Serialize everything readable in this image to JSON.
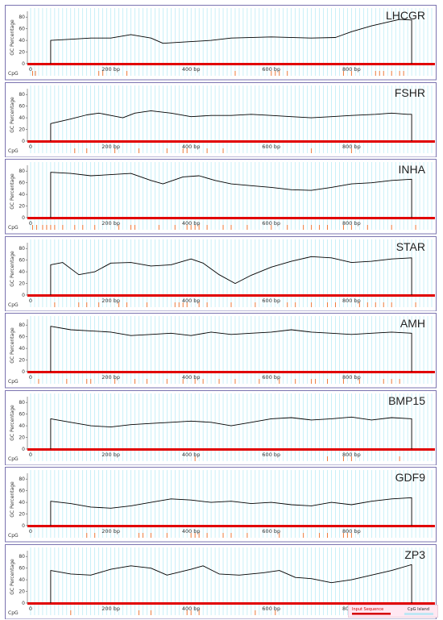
{
  "chart_data": [
    {
      "type": "line",
      "gene": "LHCGR",
      "ylabel": "GC Percentage",
      "track_label": "CpG",
      "yticks": [
        0,
        20,
        40,
        60,
        80
      ],
      "xticks": [
        {
          "pos": 0,
          "label": "0"
        },
        {
          "pos": 200,
          "label": "200  bp"
        },
        {
          "pos": 400,
          "label": "400  bp"
        },
        {
          "pos": 600,
          "label": "600  bp"
        },
        {
          "pos": 800,
          "label": "800  bp"
        }
      ],
      "ylim": [
        0,
        90
      ],
      "xlim": [
        0,
        1000
      ],
      "line_start": 50,
      "line_end": 950,
      "profile": [
        [
          50,
          40
        ],
        [
          100,
          42
        ],
        [
          150,
          44
        ],
        [
          200,
          44
        ],
        [
          250,
          50
        ],
        [
          300,
          44
        ],
        [
          330,
          35
        ],
        [
          400,
          38
        ],
        [
          450,
          40
        ],
        [
          500,
          44
        ],
        [
          600,
          46
        ],
        [
          700,
          44
        ],
        [
          760,
          45
        ],
        [
          800,
          55
        ],
        [
          850,
          65
        ],
        [
          900,
          73
        ],
        [
          920,
          76
        ],
        [
          950,
          75
        ]
      ],
      "cpg_sites": [
        5,
        12,
        170,
        180,
        240,
        510,
        600,
        610,
        620,
        640,
        780,
        800,
        860,
        870,
        880,
        900,
        920,
        930
      ]
    },
    {
      "type": "line",
      "gene": "FSHR",
      "ylabel": "GC Percentage",
      "track_label": "CpG",
      "yticks": [
        0,
        20,
        40,
        60,
        80
      ],
      "xticks": [
        {
          "pos": 0,
          "label": "0"
        },
        {
          "pos": 200,
          "label": "200  bp"
        },
        {
          "pos": 400,
          "label": "400  bp"
        },
        {
          "pos": 600,
          "label": "600  bp"
        },
        {
          "pos": 800,
          "label": "800  bp"
        }
      ],
      "ylim": [
        0,
        90
      ],
      "xlim": [
        0,
        1000
      ],
      "line_start": 50,
      "line_end": 950,
      "profile": [
        [
          50,
          30
        ],
        [
          100,
          38
        ],
        [
          140,
          45
        ],
        [
          170,
          48
        ],
        [
          200,
          44
        ],
        [
          230,
          40
        ],
        [
          260,
          48
        ],
        [
          300,
          52
        ],
        [
          350,
          48
        ],
        [
          400,
          42
        ],
        [
          450,
          44
        ],
        [
          500,
          44
        ],
        [
          550,
          46
        ],
        [
          600,
          44
        ],
        [
          650,
          42
        ],
        [
          700,
          40
        ],
        [
          750,
          42
        ],
        [
          800,
          44
        ],
        [
          860,
          46
        ],
        [
          900,
          48
        ],
        [
          940,
          46
        ],
        [
          950,
          46
        ]
      ],
      "cpg_sites": [
        110,
        140,
        210,
        270,
        340,
        380,
        390,
        440,
        480,
        700,
        800
      ]
    },
    {
      "type": "line",
      "gene": "INHA",
      "ylabel": "GC Percentage",
      "track_label": "CpG",
      "yticks": [
        0,
        20,
        40,
        60,
        80
      ],
      "xticks": [
        {
          "pos": 0,
          "label": "0"
        },
        {
          "pos": 200,
          "label": "200  bp"
        },
        {
          "pos": 400,
          "label": "400  bp"
        },
        {
          "pos": 600,
          "label": "600  bp"
        },
        {
          "pos": 800,
          "label": "800  bp"
        }
      ],
      "ylim": [
        0,
        90
      ],
      "xlim": [
        0,
        1000
      ],
      "line_start": 50,
      "line_end": 950,
      "profile": [
        [
          50,
          78
        ],
        [
          100,
          76
        ],
        [
          150,
          72
        ],
        [
          200,
          74
        ],
        [
          250,
          76
        ],
        [
          300,
          64
        ],
        [
          330,
          58
        ],
        [
          380,
          70
        ],
        [
          420,
          72
        ],
        [
          460,
          64
        ],
        [
          500,
          58
        ],
        [
          550,
          55
        ],
        [
          600,
          52
        ],
        [
          650,
          48
        ],
        [
          700,
          47
        ],
        [
          750,
          52
        ],
        [
          800,
          58
        ],
        [
          850,
          60
        ],
        [
          900,
          64
        ],
        [
          950,
          66
        ]
      ],
      "cpg_sites": [
        5,
        15,
        30,
        40,
        50,
        60,
        80,
        110,
        130,
        160,
        220,
        250,
        260,
        320,
        360,
        390,
        400,
        410,
        420,
        440,
        480,
        500,
        540,
        600,
        640,
        680,
        700,
        720,
        740,
        780,
        800,
        840,
        900,
        960
      ]
    },
    {
      "type": "line",
      "gene": "STAR",
      "ylabel": "GC Percentage",
      "track_label": "CpG",
      "yticks": [
        0,
        20,
        40,
        60,
        80
      ],
      "xticks": [
        {
          "pos": 0,
          "label": "0"
        },
        {
          "pos": 200,
          "label": "200  bp"
        },
        {
          "pos": 400,
          "label": "400  bp"
        },
        {
          "pos": 600,
          "label": "600  bp"
        },
        {
          "pos": 800,
          "label": "800  bp"
        }
      ],
      "ylim": [
        0,
        90
      ],
      "xlim": [
        0,
        1000
      ],
      "line_start": 50,
      "line_end": 950,
      "profile": [
        [
          50,
          52
        ],
        [
          80,
          56
        ],
        [
          120,
          35
        ],
        [
          160,
          40
        ],
        [
          200,
          55
        ],
        [
          250,
          56
        ],
        [
          300,
          50
        ],
        [
          350,
          52
        ],
        [
          400,
          62
        ],
        [
          430,
          55
        ],
        [
          470,
          35
        ],
        [
          510,
          20
        ],
        [
          550,
          34
        ],
        [
          600,
          48
        ],
        [
          650,
          58
        ],
        [
          700,
          66
        ],
        [
          750,
          64
        ],
        [
          800,
          56
        ],
        [
          850,
          58
        ],
        [
          900,
          62
        ],
        [
          950,
          64
        ]
      ],
      "cpg_sites": [
        60,
        120,
        140,
        170,
        220,
        240,
        290,
        360,
        370,
        380,
        390,
        420,
        440,
        500,
        560,
        640,
        660,
        700,
        740,
        760,
        820,
        840,
        860,
        880,
        900,
        960
      ]
    },
    {
      "type": "line",
      "gene": "AMH",
      "ylabel": "GC Percentage",
      "track_label": "CpG",
      "yticks": [
        0,
        20,
        40,
        60,
        80
      ],
      "xticks": [
        {
          "pos": 0,
          "label": "0"
        },
        {
          "pos": 200,
          "label": "200  bp"
        },
        {
          "pos": 400,
          "label": "400  bp"
        },
        {
          "pos": 600,
          "label": "600  bp"
        },
        {
          "pos": 800,
          "label": "800  bp"
        }
      ],
      "ylim": [
        0,
        90
      ],
      "xlim": [
        0,
        1000
      ],
      "line_start": 50,
      "line_end": 950,
      "profile": [
        [
          50,
          78
        ],
        [
          100,
          72
        ],
        [
          150,
          70
        ],
        [
          200,
          68
        ],
        [
          250,
          62
        ],
        [
          300,
          64
        ],
        [
          350,
          66
        ],
        [
          400,
          62
        ],
        [
          450,
          68
        ],
        [
          500,
          64
        ],
        [
          550,
          66
        ],
        [
          600,
          68
        ],
        [
          650,
          72
        ],
        [
          700,
          68
        ],
        [
          750,
          66
        ],
        [
          800,
          64
        ],
        [
          850,
          66
        ],
        [
          900,
          68
        ],
        [
          950,
          66
        ]
      ],
      "cpg_sites": [
        20,
        90,
        140,
        150,
        210,
        260,
        290,
        340,
        380,
        410,
        430,
        470,
        510,
        570,
        620,
        660,
        700,
        710,
        740,
        780,
        820,
        880,
        900,
        920
      ]
    },
    {
      "type": "line",
      "gene": "BMP15",
      "ylabel": "GC Percentage",
      "track_label": "CpG",
      "yticks": [
        0,
        20,
        40,
        60,
        80
      ],
      "xticks": [
        {
          "pos": 0,
          "label": "0"
        },
        {
          "pos": 200,
          "label": "200  bp"
        },
        {
          "pos": 400,
          "label": "400  bp"
        },
        {
          "pos": 600,
          "label": "600  bp"
        },
        {
          "pos": 800,
          "label": "800  bp"
        }
      ],
      "ylim": [
        0,
        90
      ],
      "xlim": [
        0,
        1000
      ],
      "line_start": 50,
      "line_end": 950,
      "profile": [
        [
          50,
          52
        ],
        [
          100,
          46
        ],
        [
          150,
          40
        ],
        [
          200,
          38
        ],
        [
          250,
          42
        ],
        [
          300,
          44
        ],
        [
          350,
          46
        ],
        [
          400,
          48
        ],
        [
          450,
          46
        ],
        [
          500,
          40
        ],
        [
          550,
          46
        ],
        [
          600,
          52
        ],
        [
          650,
          54
        ],
        [
          700,
          50
        ],
        [
          750,
          52
        ],
        [
          800,
          55
        ],
        [
          850,
          50
        ],
        [
          900,
          54
        ],
        [
          950,
          52
        ]
      ],
      "cpg_sites": [
        410,
        740,
        780,
        800,
        920
      ]
    },
    {
      "type": "line",
      "gene": "GDF9",
      "ylabel": "GC Percentage",
      "track_label": "CpG",
      "yticks": [
        0,
        20,
        40,
        60,
        80
      ],
      "xticks": [
        {
          "pos": 0,
          "label": "0"
        },
        {
          "pos": 200,
          "label": "200  bp"
        },
        {
          "pos": 400,
          "label": "400  bp"
        },
        {
          "pos": 600,
          "label": "600  bp"
        },
        {
          "pos": 800,
          "label": "800  bp"
        }
      ],
      "ylim": [
        0,
        90
      ],
      "xlim": [
        0,
        1000
      ],
      "line_start": 50,
      "line_end": 950,
      "profile": [
        [
          50,
          42
        ],
        [
          100,
          38
        ],
        [
          150,
          32
        ],
        [
          200,
          30
        ],
        [
          250,
          34
        ],
        [
          300,
          40
        ],
        [
          350,
          46
        ],
        [
          400,
          44
        ],
        [
          450,
          40
        ],
        [
          500,
          42
        ],
        [
          550,
          38
        ],
        [
          600,
          40
        ],
        [
          650,
          36
        ],
        [
          700,
          34
        ],
        [
          750,
          40
        ],
        [
          800,
          36
        ],
        [
          850,
          42
        ],
        [
          900,
          46
        ],
        [
          950,
          48
        ]
      ],
      "cpg_sites": [
        140,
        160,
        270,
        280,
        300,
        340,
        400,
        410,
        420,
        440,
        480,
        500,
        540,
        620,
        680,
        720,
        740,
        780,
        790,
        800
      ]
    },
    {
      "type": "line",
      "gene": "ZP3",
      "ylabel": "GC Percentage",
      "track_label": "CpG",
      "yticks": [
        0,
        20,
        40,
        60,
        80
      ],
      "xticks": [
        {
          "pos": 0,
          "label": "0"
        },
        {
          "pos": 200,
          "label": "200  bp"
        },
        {
          "pos": 400,
          "label": "400  bp"
        },
        {
          "pos": 600,
          "label": "600  bp"
        },
        {
          "pos": 800,
          "label": "800  bp"
        }
      ],
      "ylim": [
        0,
        90
      ],
      "xlim": [
        0,
        1000
      ],
      "line_start": 50,
      "line_end": 950,
      "profile": [
        [
          50,
          56
        ],
        [
          100,
          50
        ],
        [
          150,
          48
        ],
        [
          200,
          58
        ],
        [
          250,
          64
        ],
        [
          300,
          60
        ],
        [
          340,
          48
        ],
        [
          400,
          58
        ],
        [
          430,
          64
        ],
        [
          470,
          50
        ],
        [
          520,
          48
        ],
        [
          580,
          52
        ],
        [
          620,
          56
        ],
        [
          660,
          44
        ],
        [
          700,
          42
        ],
        [
          750,
          35
        ],
        [
          800,
          40
        ],
        [
          850,
          48
        ],
        [
          900,
          56
        ],
        [
          950,
          66
        ]
      ],
      "cpg_sites": [
        100,
        270,
        300,
        390,
        400,
        420,
        560,
        610,
        860,
        960
      ]
    }
  ],
  "legend": {
    "input_label": "Input Sequence",
    "island_label": "CpG Island"
  },
  "colors": {
    "frame": "#7b74b0",
    "grid": "#a7e6f3",
    "baseline": "#e10000",
    "cpg_tick": "#ee7a3a",
    "line": "#000000"
  }
}
